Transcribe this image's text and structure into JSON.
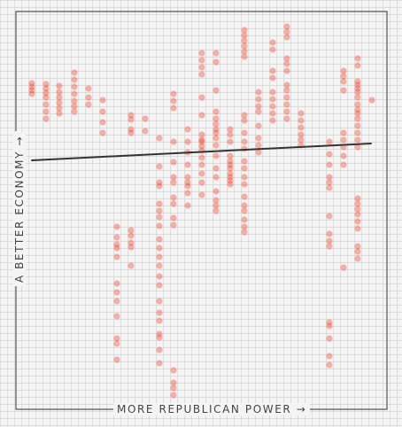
{
  "chart_data": {
    "type": "scatter",
    "xlabel": "MORE REPUBLICAN POWER →",
    "ylabel": "A BETTER ECONOMY →",
    "title": "",
    "grid": true,
    "legend": "none",
    "dot_color": "#f23c25",
    "trend_color": "#333333",
    "trend_line": [
      [
        36,
        181
      ],
      [
        419,
        162
      ]
    ],
    "columns": [
      {
        "x": 36,
        "y": [
          94,
          98,
          102,
          106
        ]
      },
      {
        "x": 52,
        "y": [
          95,
          100,
          105,
          110,
          118,
          126,
          134
        ]
      },
      {
        "x": 67,
        "y": [
          97,
          104,
          110,
          116,
          122,
          128
        ]
      },
      {
        "x": 84,
        "y": [
          82,
          90,
          98,
          106,
          114,
          120,
          126
        ]
      },
      {
        "x": 100,
        "y": [
          100,
          110,
          118
        ]
      },
      {
        "x": 116,
        "y": [
          113,
          126,
          138,
          150
        ]
      },
      {
        "x": 132,
        "y": [
          256,
          268,
          276,
          280,
          290,
          320,
          330,
          340,
          357,
          382,
          388,
          406
        ]
      },
      {
        "x": 148,
        "y": [
          130,
          135,
          146,
          150,
          260,
          266,
          274,
          279,
          300
        ]
      },
      {
        "x": 164,
        "y": [
          134,
          148
        ]
      },
      {
        "x": 180,
        "y": [
          156,
          188,
          206,
          210,
          230,
          238,
          245,
          255,
          270,
          280,
          290,
          300,
          312,
          322,
          340,
          353,
          362,
          377,
          381,
          395,
          410
        ]
      },
      {
        "x": 196,
        "y": [
          106,
          114,
          122,
          160,
          183,
          200,
          206,
          223,
          230,
          246,
          254,
          418,
          432,
          438,
          446
        ]
      },
      {
        "x": 212,
        "y": [
          146,
          160,
          172,
          186,
          200,
          206,
          210,
          218,
          232
        ]
      },
      {
        "x": 228,
        "y": [
          60,
          68,
          76,
          84,
          110,
          130,
          152,
          158,
          160,
          165,
          170,
          178,
          186,
          196,
          206,
          220
        ]
      },
      {
        "x": 244,
        "y": [
          60,
          70,
          102,
          126,
          134,
          140,
          146,
          150,
          156,
          164,
          176,
          190,
          200,
          216,
          226,
          232,
          238
        ]
      },
      {
        "x": 260,
        "y": [
          146,
          152,
          160,
          176,
          182,
          186,
          190,
          196,
          200,
          204,
          208
        ]
      },
      {
        "x": 276,
        "y": [
          34,
          40,
          46,
          52,
          58,
          64,
          130,
          136,
          150,
          160,
          168,
          182,
          190,
          200,
          208,
          222,
          232,
          238,
          248,
          256,
          262
        ]
      },
      {
        "x": 292,
        "y": [
          104,
          112,
          120,
          126,
          142,
          156,
          164,
          172
        ]
      },
      {
        "x": 308,
        "y": [
          48,
          56,
          80,
          88,
          104,
          112,
          120,
          128,
          136
        ]
      },
      {
        "x": 324,
        "y": [
          30,
          36,
          42,
          66,
          72,
          80,
          96,
          102,
          110,
          118,
          126,
          134
        ]
      },
      {
        "x": 340,
        "y": [
          128,
          136,
          144,
          152,
          158,
          164
        ]
      },
      {
        "x": 372,
        "y": [
          160,
          174,
          186,
          200,
          206,
          212,
          244,
          264,
          272,
          278,
          364,
          368,
          382,
          402,
          412
        ]
      },
      {
        "x": 388,
        "y": [
          80,
          86,
          92,
          102,
          150,
          158,
          166,
          176,
          186,
          302
        ]
      },
      {
        "x": 404,
        "y": [
          66,
          74,
          92,
          96,
          100,
          104,
          110,
          118,
          124,
          128,
          134,
          142,
          150,
          158,
          166,
          224,
          230,
          236,
          242,
          250,
          258,
          278,
          284,
          292
        ]
      },
      {
        "x": 420,
        "y": [
          113
        ]
      }
    ]
  }
}
